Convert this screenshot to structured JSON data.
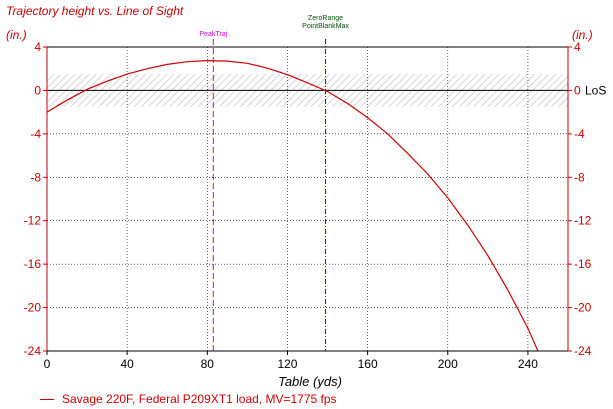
{
  "chart_data": {
    "type": "line",
    "title": "Trajectory height vs. Line of Sight",
    "xlabel": "Table (yds)",
    "ylabel_left": "(in.)",
    "ylabel_right": "(in.)",
    "xlim": [
      0,
      260
    ],
    "ylim": [
      -24,
      4
    ],
    "xticks": [
      0,
      40,
      80,
      120,
      160,
      200,
      240
    ],
    "yticks": [
      4,
      0,
      -4,
      -8,
      -12,
      -16,
      -20,
      -24
    ],
    "grid": true,
    "line_of_sight_label": "LoS",
    "band": [
      -1.5,
      1.5
    ],
    "series": [
      {
        "name": "Savage 220F, Federal P209XT1 load,  MV=1775 fps",
        "color": "#cc0000",
        "x": [
          0,
          10,
          20,
          30,
          40,
          50,
          60,
          70,
          80,
          90,
          100,
          110,
          120,
          130,
          140,
          150,
          160,
          170,
          180,
          190,
          200,
          210,
          220,
          230,
          240,
          245
        ],
        "y": [
          -2.0,
          -0.9,
          0.1,
          0.85,
          1.5,
          2.0,
          2.4,
          2.65,
          2.75,
          2.7,
          2.5,
          2.05,
          1.45,
          0.7,
          -0.1,
          -1.2,
          -2.5,
          -4.0,
          -5.8,
          -7.7,
          -9.9,
          -12.4,
          -15.2,
          -18.4,
          -21.9,
          -24.0
        ]
      }
    ],
    "markers": [
      {
        "label": "PeakTraj",
        "x": 83,
        "color": "#cc00cc"
      },
      {
        "label": "ZeroRange",
        "x": 139,
        "color": "#005500"
      },
      {
        "label": "PointBlankMax",
        "x": 139,
        "color": "#005500"
      }
    ]
  }
}
